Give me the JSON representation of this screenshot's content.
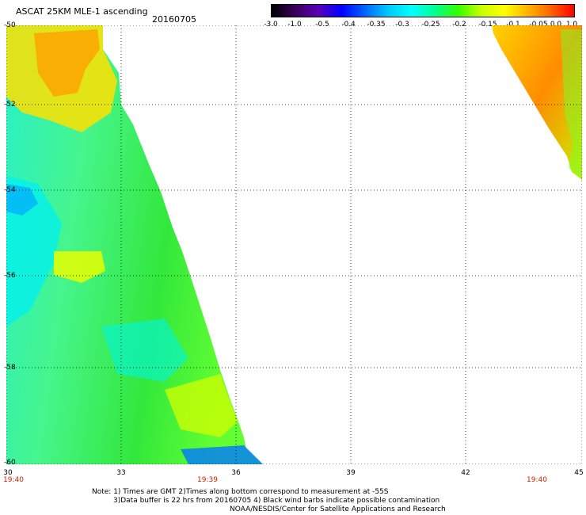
{
  "header": {
    "title": "ASCAT 25KM MLE-1 ascending",
    "date": "20160705"
  },
  "colorbar": {
    "labels": [
      "-3.0",
      "-1.0",
      "-0.5",
      "-0.4",
      "-0.35",
      "-0.3",
      "-0.25",
      "-0.2",
      "-0.15",
      "-0.1",
      "-0.05",
      "0.0",
      "1.0"
    ],
    "colors": [
      "#000000",
      "#3b005a",
      "#5a00b4",
      "#0000ff",
      "#0064ff",
      "#00c8ff",
      "#00ffff",
      "#00ff96",
      "#32ff00",
      "#c8ff00",
      "#ffff00",
      "#ffb400",
      "#ff6400",
      "#ff0000"
    ]
  },
  "axes": {
    "lat_labels": [
      "-50",
      "-52",
      "-54",
      "-56",
      "-58",
      "-60"
    ],
    "lon_labels": [
      "30",
      "33",
      "36",
      "39",
      "42",
      "45"
    ],
    "time_labels": [
      "19:40",
      "19:39",
      "19:40"
    ]
  },
  "notes": {
    "line1": "Note: 1) Times are GMT 2)Times along bottom correspond to measurement at -55S",
    "line2": "3)Data buffer is 22 hrs from 20160705 4) Black wind barbs indicate possible contamination",
    "line3": "NOAA/NESDIS/Center for Satellite Applications and Research"
  }
}
